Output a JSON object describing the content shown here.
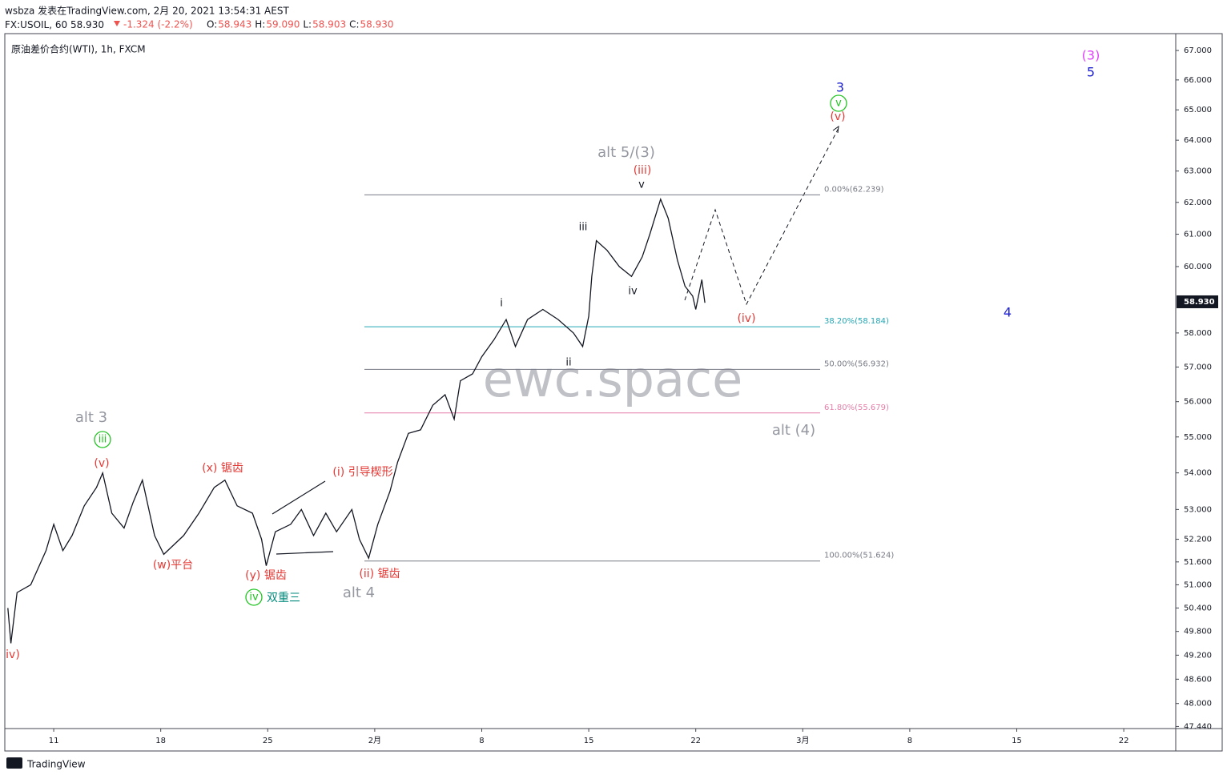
{
  "header": {
    "publisher": "wsbza 发表在TradingView.com, 2月 20, 2021 13:54:31 AEST",
    "symbol": "FX:USOIL, 60",
    "last": "58.930",
    "change": "-1.324 (-2.2%)",
    "ohlc": [
      {
        "key": "O:",
        "val": "58.943"
      },
      {
        "key": "H:",
        "val": "59.090"
      },
      {
        "key": "L:",
        "val": "58.903"
      },
      {
        "key": "C:",
        "val": "58.930"
      }
    ]
  },
  "footer": "TradingView",
  "chart_data": {
    "type": "line",
    "title": "原油差价合约(WTI), 1h, FXCM",
    "watermark": "ewc.space",
    "log": true,
    "x": [
      8.0,
      8.2,
      8.6,
      9.5,
      10.5,
      11.0,
      11.6,
      12.2,
      13.0,
      13.8,
      14.2,
      14.8,
      15.6,
      16.2,
      16.8,
      17.6,
      18.2,
      19.5,
      20.5,
      21.5,
      22.2,
      23.0,
      24.0,
      24.6,
      24.9,
      25.5,
      26.5,
      27.2,
      28.0,
      28.8,
      29.5,
      30.5,
      31.0,
      31.6,
      32.2,
      33.0,
      33.5,
      34.2,
      35.0,
      35.8,
      36.6,
      37.2,
      37.6,
      38.4,
      39.0,
      39.8,
      40.6,
      41.2,
      42.0,
      43.0,
      44.0,
      45.0,
      45.6,
      46.0,
      46.2,
      46.5,
      47.2,
      48.0,
      48.8,
      49.5,
      50.0,
      50.7,
      51.2,
      51.8,
      52.3,
      52.8,
      53.0,
      53.4,
      53.6
    ],
    "series": [
      {
        "name": "FX:USOIL",
        "color": "#131722",
        "values": [
          50.4,
          49.5,
          50.8,
          51.0,
          51.9,
          52.6,
          51.9,
          52.3,
          53.1,
          53.6,
          54.0,
          52.9,
          52.5,
          53.2,
          53.8,
          52.3,
          51.8,
          52.3,
          52.9,
          53.6,
          53.8,
          53.1,
          52.9,
          52.2,
          51.5,
          52.4,
          52.6,
          53.0,
          52.3,
          52.9,
          52.4,
          53.0,
          52.2,
          51.7,
          52.6,
          53.5,
          54.3,
          55.1,
          55.2,
          55.9,
          56.2,
          55.5,
          56.6,
          56.8,
          57.3,
          57.8,
          58.4,
          57.6,
          58.4,
          58.7,
          58.4,
          58.0,
          57.6,
          58.5,
          59.7,
          60.8,
          60.5,
          60.0,
          59.7,
          60.3,
          61.0,
          62.1,
          61.5,
          60.2,
          59.4,
          59.1,
          58.7,
          59.6,
          58.9
        ]
      }
    ],
    "last_price": {
      "value": 58.93,
      "label": "58.930"
    },
    "xlim": [
      7.8,
      84.4
    ],
    "xticks": [
      {
        "value": 11,
        "label": "11"
      },
      {
        "value": 18,
        "label": "18"
      },
      {
        "value": 25,
        "label": "25"
      },
      {
        "value": 32,
        "label": "2月"
      },
      {
        "value": 39,
        "label": "8"
      },
      {
        "value": 46,
        "label": "15"
      },
      {
        "value": 53,
        "label": "22"
      },
      {
        "value": 60,
        "label": "3月"
      },
      {
        "value": 67,
        "label": "8"
      },
      {
        "value": 74,
        "label": "15"
      },
      {
        "value": 81,
        "label": "22"
      }
    ],
    "ylim": [
      47.39,
      67.58
    ],
    "yticks": [
      {
        "value": 47.44,
        "label": "47.440"
      },
      {
        "value": 48,
        "label": "48.000"
      },
      {
        "value": 48.6,
        "label": "48.600"
      },
      {
        "value": 49.2,
        "label": "49.200"
      },
      {
        "value": 49.8,
        "label": "49.800"
      },
      {
        "value": 50.4,
        "label": "50.400"
      },
      {
        "value": 51,
        "label": "51.000"
      },
      {
        "value": 51.6,
        "label": "51.600"
      },
      {
        "value": 52.2,
        "label": "52.200"
      },
      {
        "value": 53,
        "label": "53.000"
      },
      {
        "value": 54,
        "label": "54.000"
      },
      {
        "value": 55,
        "label": "55.000"
      },
      {
        "value": 56,
        "label": "56.000"
      },
      {
        "value": 57,
        "label": "57.000"
      },
      {
        "value": 58,
        "label": "58.000"
      },
      {
        "value": 60,
        "label": "60.000"
      },
      {
        "value": 61,
        "label": "61.000"
      },
      {
        "value": 62,
        "label": "62.000"
      },
      {
        "value": 63,
        "label": "63.000"
      },
      {
        "value": 64,
        "label": "64.000"
      },
      {
        "value": 65,
        "label": "65.000"
      },
      {
        "value": 66,
        "label": "66.000"
      },
      {
        "value": 67,
        "label": "67.000"
      }
    ],
    "fib_levels": [
      {
        "value": 62.239,
        "label": "0.00%(62.239)",
        "color": "#787b86"
      },
      {
        "value": 58.184,
        "label": "38.20%(58.184)",
        "color": "#22a7b5"
      },
      {
        "value": 56.932,
        "label": "50.00%(56.932)",
        "color": "#787b86"
      },
      {
        "value": 55.679,
        "label": "61.80%(55.679)",
        "color": "#e57fa8"
      },
      {
        "value": 51.624,
        "label": "100.00%(51.624)",
        "color": "#787b86"
      }
    ],
    "annotations": [
      {
        "text": "alt 5/(3)",
        "color": "#9598a1"
      },
      {
        "text": "(iii)",
        "color": "#e53935"
      },
      {
        "text": "v",
        "color": "#131722"
      },
      {
        "text": "iii",
        "color": "#131722"
      },
      {
        "text": "i",
        "color": "#131722"
      },
      {
        "text": "ii",
        "color": "#131722"
      },
      {
        "text": "iv",
        "color": "#131722"
      },
      {
        "text": "(iv)",
        "color": "#e53935"
      },
      {
        "text": "alt (4)",
        "color": "#9598a1"
      },
      {
        "text": "(3)",
        "color": "#e040fb"
      },
      {
        "text": "5",
        "color": "#1e22d0"
      },
      {
        "text": "3",
        "color": "#1e22d0"
      },
      {
        "text": "v",
        "color": "#22c422",
        "circle": true
      },
      {
        "text": "(v)",
        "color": "#e53935"
      },
      {
        "text": "4",
        "color": "#1e22d0"
      },
      {
        "text": "alt 3",
        "color": "#9598a1"
      },
      {
        "text": "iii",
        "color": "#22c422",
        "circle": true
      },
      {
        "text": "(v)",
        "color": "#e53935"
      },
      {
        "text": "(x) 锯齿",
        "color": "#e53935"
      },
      {
        "text": "(w)平台",
        "color": "#e53935"
      },
      {
        "text": "(y) 锯齿",
        "color": "#e53935"
      },
      {
        "text": "iv",
        "color": "#22c422",
        "circle": true
      },
      {
        "text": "双重三",
        "color": "#00897b"
      },
      {
        "text": "alt 4",
        "color": "#9598a1"
      },
      {
        "text": "(i) 引导楔形",
        "color": "#e53935"
      },
      {
        "text": "(ii) 锯齿",
        "color": "#e53935"
      },
      {
        "text": "iv)",
        "color": "#e53935"
      }
    ]
  }
}
